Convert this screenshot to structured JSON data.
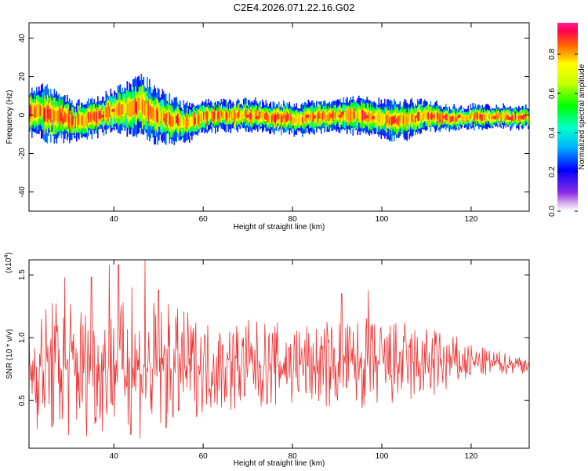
{
  "title": "C2E4.2026.071.22.16.G02",
  "chart_data": [
    {
      "type": "heatmap",
      "xlabel": "Height of straight line (km)",
      "ylabel": "Frequency (Hz)",
      "xlim": [
        21,
        133
      ],
      "ylim": [
        -50,
        48
      ],
      "xticks": [
        40,
        60,
        80,
        100,
        120
      ],
      "yticks": [
        40,
        20,
        0,
        -20,
        -40
      ],
      "ridge": {
        "x": [
          21,
          25,
          28,
          31,
          34,
          37,
          40,
          43,
          46,
          49,
          52,
          56,
          60,
          65,
          70,
          75,
          80,
          85,
          90,
          95,
          100,
          105,
          110,
          115,
          120,
          125,
          133
        ],
        "center_hz": [
          2,
          1,
          -1,
          -3,
          -2,
          0,
          2,
          3,
          5,
          0,
          -2,
          -4,
          -1,
          0,
          0,
          -1,
          -2,
          -1,
          0,
          0,
          -2,
          -3,
          0,
          -2,
          -1,
          -1,
          -1
        ],
        "spread_hz": [
          6,
          7,
          6,
          5,
          5,
          5,
          6,
          7,
          8,
          7,
          6,
          5,
          4,
          4,
          4,
          4,
          4,
          4,
          4,
          5,
          5,
          5,
          4,
          3,
          3,
          3,
          3
        ]
      },
      "colorbar": {
        "label": "Normalized spectral amplitude",
        "range": [
          0.0,
          0.96
        ],
        "ticks": [
          "0.0",
          "0.2",
          "0.4",
          "0.6",
          "0.8"
        ]
      }
    },
    {
      "type": "line",
      "xlabel": "Height of straight line (km)",
      "ylabel": "SNR (10 * v/v)",
      "multiplier": "(x10",
      "multiplier_exp": "4",
      "xlim": [
        21,
        133
      ],
      "ylim": [
        0.12,
        1.62
      ],
      "xticks": [
        40,
        60,
        80,
        100,
        120
      ],
      "yticks": [
        "0.5",
        "1.0",
        "1.5"
      ],
      "series_color": "#ee3333",
      "envelope": {
        "x": [
          21,
          26,
          30,
          35,
          40,
          45,
          50,
          55,
          60,
          65,
          70,
          75,
          80,
          85,
          90,
          95,
          100,
          105,
          110,
          115,
          120,
          125,
          133
        ],
        "center": [
          0.75,
          0.76,
          0.76,
          0.75,
          0.77,
          0.75,
          0.74,
          0.76,
          0.78,
          0.77,
          0.78,
          0.78,
          0.79,
          0.78,
          0.79,
          0.79,
          0.78,
          0.79,
          0.79,
          0.8,
          0.8,
          0.8,
          0.79
        ],
        "amplitude": [
          0.35,
          0.45,
          0.48,
          0.42,
          0.4,
          0.45,
          0.45,
          0.38,
          0.3,
          0.3,
          0.3,
          0.28,
          0.28,
          0.27,
          0.3,
          0.3,
          0.3,
          0.28,
          0.25,
          0.2,
          0.12,
          0.08,
          0.06
        ]
      },
      "peaks": [
        {
          "x": 29,
          "y": 1.48
        },
        {
          "x": 35,
          "y": 1.48
        },
        {
          "x": 39,
          "y": 1.58
        },
        {
          "x": 41,
          "y": 1.58
        },
        {
          "x": 44,
          "y": 1.4
        },
        {
          "x": 47,
          "y": 1.62
        },
        {
          "x": 50,
          "y": 1.38
        },
        {
          "x": 91,
          "y": 1.35
        },
        {
          "x": 97,
          "y": 1.38
        }
      ]
    }
  ]
}
